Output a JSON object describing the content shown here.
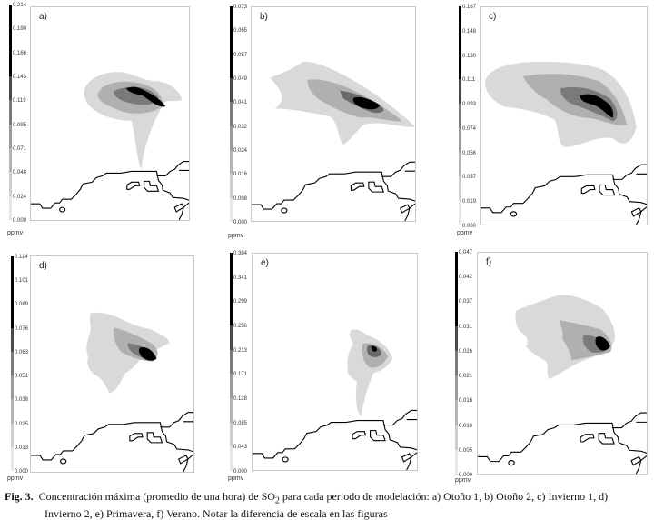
{
  "figure": {
    "unit_label": "ppmv",
    "colorbar_colors": [
      "#000000",
      "#000000",
      "#000000",
      "#4a4a4a",
      "#7a7a7a",
      "#9a9a9a",
      "#b4b4b4",
      "#cdcdcd",
      "#e6e6e6"
    ],
    "panels": [
      {
        "label": "a)",
        "ticks": [
          "0.214",
          "0.190",
          "0.166",
          "0.143",
          "0.119",
          "0.095",
          "0.071",
          "0.048",
          "0.024",
          "0.000"
        ]
      },
      {
        "label": "b)",
        "ticks": [
          "0.073",
          "0.065",
          "0.057",
          "0.049",
          "0.041",
          "0.032",
          "0.024",
          "0.016",
          "0.008",
          "0.000"
        ]
      },
      {
        "label": "c)",
        "ticks": [
          "0.167",
          "0.148",
          "0.130",
          "0.111",
          "0.093",
          "0.074",
          "0.056",
          "0.037",
          "0.019",
          "0.000"
        ]
      },
      {
        "label": "d)",
        "ticks": [
          "0.114",
          "0.101",
          "0.089",
          "0.076",
          "0.063",
          "0.051",
          "0.038",
          "0.025",
          "0.013",
          "0.000"
        ]
      },
      {
        "label": "e)",
        "ticks": [
          "0.384",
          "0.341",
          "0.299",
          "0.256",
          "0.213",
          "0.171",
          "0.128",
          "0.085",
          "0.043",
          "0.000"
        ]
      },
      {
        "label": "f)",
        "ticks": [
          "0.047",
          "0.042",
          "0.037",
          "0.031",
          "0.026",
          "0.021",
          "0.016",
          "0.010",
          "0.005",
          "0.000"
        ]
      }
    ]
  },
  "caption": {
    "fig_label": "Fig. 3.",
    "text_before": "Concentración máxima (promedio de una hora) de SO",
    "subscript": "2",
    "text_line1_after": " para cada periodo de modelación: a) Otoño 1, b) Otoño 2, c) Invierno 1, d)",
    "text_line2": "Invierno 2, e) Primavera, f) Verano. Notar la diferencia de escala en las figuras"
  },
  "chart_data": {
    "type": "heatmap",
    "panels": [
      {
        "label": "a)",
        "colorbar_range": [
          0.0,
          0.214
        ],
        "unit": "ppmv"
      },
      {
        "label": "b)",
        "colorbar_range": [
          0.0,
          0.073
        ],
        "unit": "ppmv"
      },
      {
        "label": "c)",
        "colorbar_range": [
          0.0,
          0.167
        ],
        "unit": "ppmv"
      },
      {
        "label": "d)",
        "colorbar_range": [
          0.0,
          0.114
        ],
        "unit": "ppmv"
      },
      {
        "label": "e)",
        "colorbar_range": [
          0.0,
          0.384
        ],
        "unit": "ppmv"
      },
      {
        "label": "f)",
        "colorbar_range": [
          0.0,
          0.047
        ],
        "unit": "ppmv"
      }
    ]
  }
}
